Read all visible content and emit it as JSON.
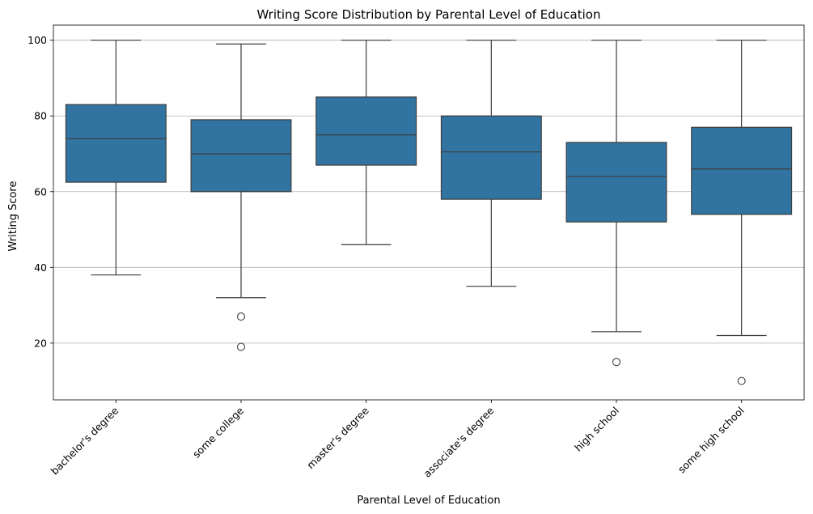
{
  "chart_data": {
    "type": "box",
    "title": "Writing Score Distribution by Parental Level of Education",
    "xlabel": "Parental Level of Education",
    "ylabel": "Writing Score",
    "ylim": [
      5,
      104
    ],
    "yticks": [
      20,
      40,
      60,
      80,
      100
    ],
    "grid": "y",
    "box_color": "#3274a1",
    "line_color": "#3d3d3d",
    "categories": [
      "bachelor's degree",
      "some college",
      "master's degree",
      "associate's degree",
      "high school",
      "some high school"
    ],
    "boxes": [
      {
        "category": "bachelor's degree",
        "whisker_low": 38,
        "q1": 62.5,
        "median": 74,
        "q3": 83,
        "whisker_high": 100,
        "outliers": []
      },
      {
        "category": "some college",
        "whisker_low": 32,
        "q1": 60,
        "median": 70,
        "q3": 79,
        "whisker_high": 99,
        "outliers": [
          27,
          19
        ]
      },
      {
        "category": "master's degree",
        "whisker_low": 46,
        "q1": 67,
        "median": 75,
        "q3": 85,
        "whisker_high": 100,
        "outliers": []
      },
      {
        "category": "associate's degree",
        "whisker_low": 35,
        "q1": 58,
        "median": 70.5,
        "q3": 80,
        "whisker_high": 100,
        "outliers": []
      },
      {
        "category": "high school",
        "whisker_low": 23,
        "q1": 52,
        "median": 64,
        "q3": 73,
        "whisker_high": 100,
        "outliers": [
          15
        ]
      },
      {
        "category": "some high school",
        "whisker_low": 22,
        "q1": 54,
        "median": 66,
        "q3": 77,
        "whisker_high": 100,
        "outliers": [
          10
        ]
      }
    ]
  }
}
